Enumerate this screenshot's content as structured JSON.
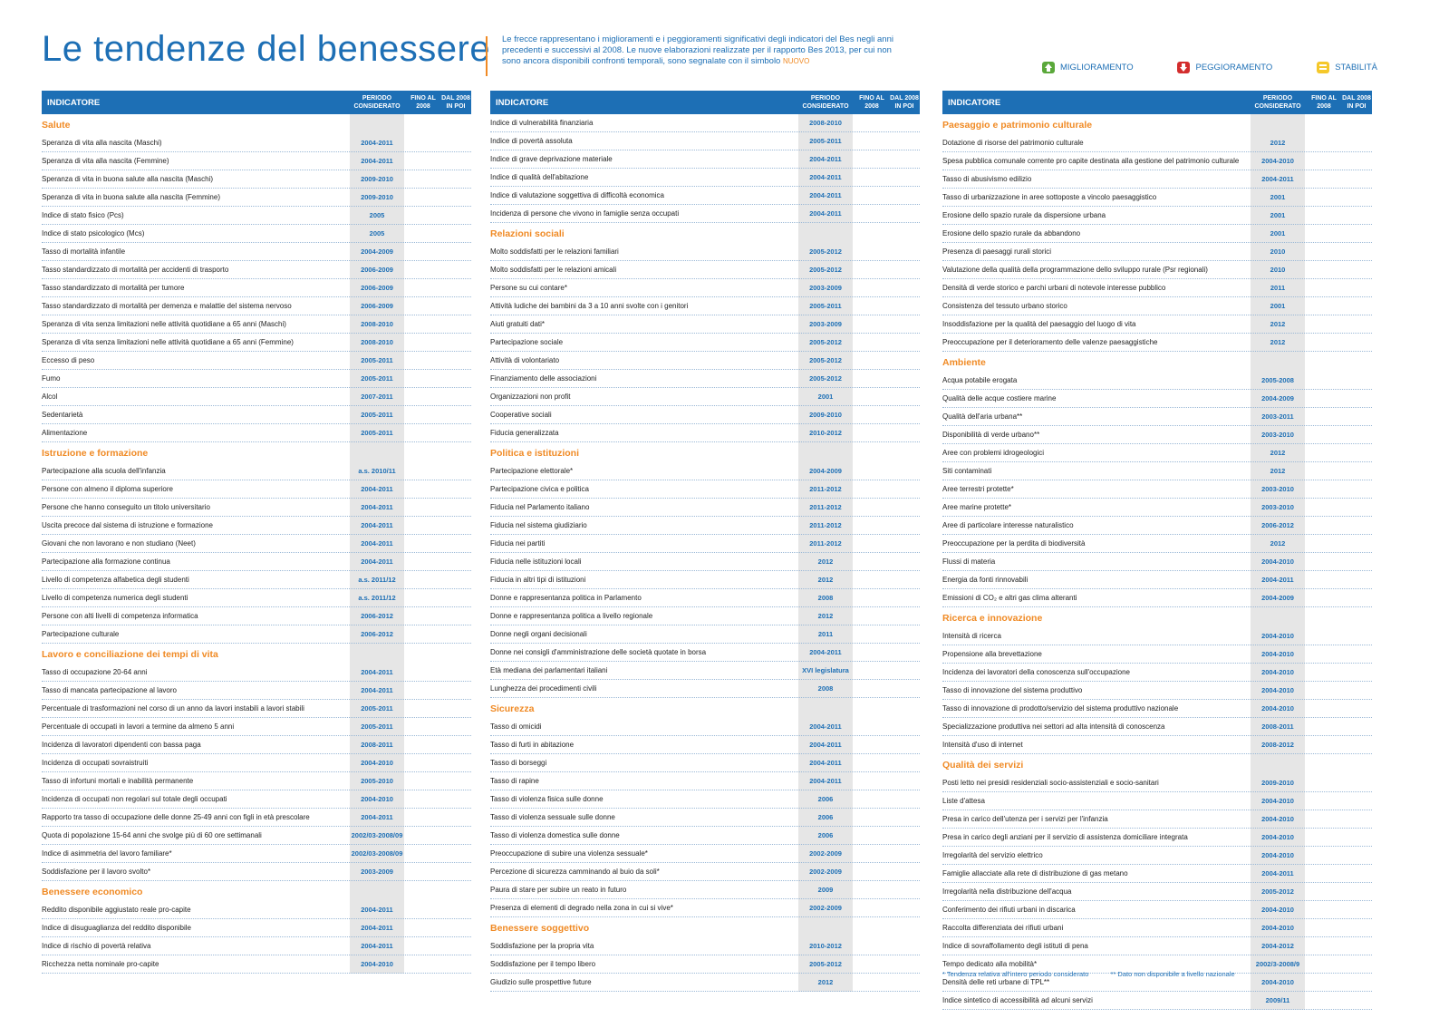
{
  "header": {
    "title": "Le tendenze del benessere",
    "intro_1": "Le frecce rappresentano i miglioramenti e i peggioramenti significativi degli indicatori del Bes negli anni precedenti e successivi al 2008.",
    "intro_2": "Le nuove elaborazioni realizzate per il rapporto Bes 2013, per cui non sono ancora disponibili confronti temporali, sono segnalate con il simbolo",
    "intro_nuovo": "NUOVO"
  },
  "legend": {
    "improve": "MIGLIORAMENTO",
    "worse": "PEGGIORAMENTO",
    "stable": "STABILITÀ"
  },
  "table_header": {
    "indicator": "INDICATORE",
    "period": "PERIODO CONSIDERATO",
    "fino": "FINO AL 2008",
    "dal": "DAL 2008 IN POI"
  },
  "columns": [
    {
      "sections": [
        {
          "title": "Salute",
          "rows": [
            {
              "label": "Speranza di vita alla nascita (Maschi)",
              "period": "2004-2011"
            },
            {
              "label": "Speranza di vita alla nascita (Femmine)",
              "period": "2004-2011"
            },
            {
              "label": "Speranza di vita in buona salute alla nascita (Maschi)",
              "period": "2009-2010"
            },
            {
              "label": "Speranza di vita in buona salute alla nascita (Femmine)",
              "period": "2009-2010"
            },
            {
              "label": "Indice di stato fisico (Pcs)",
              "period": "2005"
            },
            {
              "label": "Indice di stato psicologico (Mcs)",
              "period": "2005"
            },
            {
              "label": "Tasso di mortalità infantile",
              "period": "2004-2009"
            },
            {
              "label": "Tasso standardizzato di mortalità per accidenti di trasporto",
              "period": "2006-2009"
            },
            {
              "label": "Tasso standardizzato di mortalità per tumore",
              "period": "2006-2009"
            },
            {
              "label": "Tasso standardizzato di mortalità per demenza e malattie del sistema nervoso",
              "period": "2006-2009"
            },
            {
              "label": "Speranza di vita senza limitazioni nelle attività quotidiane a 65 anni (Maschi)",
              "period": "2008-2010"
            },
            {
              "label": "Speranza di vita senza limitazioni nelle attività quotidiane a 65 anni (Femmine)",
              "period": "2008-2010"
            },
            {
              "label": "Eccesso di peso",
              "period": "2005-2011"
            },
            {
              "label": "Fumo",
              "period": "2005-2011"
            },
            {
              "label": "Alcol",
              "period": "2007-2011"
            },
            {
              "label": "Sedentarietà",
              "period": "2005-2011"
            },
            {
              "label": "Alimentazione",
              "period": "2005-2011"
            }
          ]
        },
        {
          "title": "Istruzione e formazione",
          "rows": [
            {
              "label": "Partecipazione alla scuola dell'infanzia",
              "period": "a.s. 2010/11"
            },
            {
              "label": "Persone con almeno il diploma superiore",
              "period": "2004-2011"
            },
            {
              "label": "Persone che hanno conseguito un titolo universitario",
              "period": "2004-2011"
            },
            {
              "label": "Uscita precoce dal sistema di istruzione e formazione",
              "period": "2004-2011"
            },
            {
              "label": "Giovani che non lavorano e non studiano (Neet)",
              "period": "2004-2011"
            },
            {
              "label": "Partecipazione alla formazione continua",
              "period": "2004-2011"
            },
            {
              "label": "Livello di competenza alfabetica degli studenti",
              "period": "a.s. 2011/12"
            },
            {
              "label": "Livello di competenza numerica degli studenti",
              "period": "a.s. 2011/12"
            },
            {
              "label": "Persone con alti livelli di competenza informatica",
              "period": "2006-2012"
            },
            {
              "label": "Partecipazione culturale",
              "period": "2006-2012"
            }
          ]
        },
        {
          "title": "Lavoro e conciliazione dei tempi di vita",
          "rows": [
            {
              "label": "Tasso di occupazione 20-64 anni",
              "period": "2004-2011"
            },
            {
              "label": "Tasso di mancata partecipazione al lavoro",
              "period": "2004-2011"
            },
            {
              "label": "Percentuale di trasformazioni nel corso di un anno da lavori instabili a lavori stabili",
              "period": "2005-2011"
            },
            {
              "label": "Percentuale di occupati in lavori a termine da almeno 5 anni",
              "period": "2005-2011"
            },
            {
              "label": "Incidenza di lavoratori dipendenti con bassa paga",
              "period": "2008-2011"
            },
            {
              "label": "Incidenza di occupati sovraistruiti",
              "period": "2004-2010"
            },
            {
              "label": "Tasso di infortuni mortali e inabilità permanente",
              "period": "2005-2010"
            },
            {
              "label": "Incidenza di occupati non regolari sul totale degli occupati",
              "period": "2004-2010"
            },
            {
              "label": "Rapporto tra tasso di occupazione delle donne 25-49 anni con figli in età prescolare",
              "period": "2004-2011"
            },
            {
              "label": "Quota di popolazione 15-64 anni che svolge più di 60 ore settimanali",
              "period": "2002/03-2008/09"
            },
            {
              "label": "Indice di asimmetria del lavoro familiare*",
              "period": "2002/03-2008/09"
            },
            {
              "label": "Soddisfazione per il lavoro svolto*",
              "period": "2003-2009"
            }
          ]
        },
        {
          "title": "Benessere economico",
          "rows": [
            {
              "label": "Reddito disponibile aggiustato reale pro-capite",
              "period": "2004-2011"
            },
            {
              "label": "Indice di disuguaglianza del reddito disponibile",
              "period": "2004-2011"
            },
            {
              "label": "Indice di rischio di povertà relativa",
              "period": "2004-2011"
            },
            {
              "label": "Ricchezza netta nominale pro-capite",
              "period": "2004-2010"
            }
          ]
        }
      ]
    },
    {
      "sections": [
        {
          "title": "",
          "rows": [
            {
              "label": "Indice di vulnerabilità finanziaria",
              "period": "2008-2010"
            },
            {
              "label": "Indice di povertà assoluta",
              "period": "2005-2011"
            },
            {
              "label": "Indice di grave deprivazione materiale",
              "period": "2004-2011"
            },
            {
              "label": "Indice di qualità dell'abitazione",
              "period": "2004-2011"
            },
            {
              "label": "Indice di valutazione soggettiva di difficoltà economica",
              "period": "2004-2011"
            },
            {
              "label": "Incidenza di persone che vivono in famiglie senza occupati",
              "period": "2004-2011"
            }
          ]
        },
        {
          "title": "Relazioni sociali",
          "rows": [
            {
              "label": "Molto soddisfatti per le relazioni familiari",
              "period": "2005-2012"
            },
            {
              "label": "Molto soddisfatti per le relazioni amicali",
              "period": "2005-2012"
            },
            {
              "label": "Persone su cui contare*",
              "period": "2003-2009"
            },
            {
              "label": "Attività ludiche dei bambini da 3 a 10 anni svolte con i genitori",
              "period": "2005-2011"
            },
            {
              "label": "Aiuti gratuiti dati*",
              "period": "2003-2009"
            },
            {
              "label": "Partecipazione sociale",
              "period": "2005-2012"
            },
            {
              "label": "Attività di volontariato",
              "period": "2005-2012"
            },
            {
              "label": "Finanziamento delle associazioni",
              "period": "2005-2012"
            },
            {
              "label": "Organizzazioni non profit",
              "period": "2001"
            },
            {
              "label": "Cooperative sociali",
              "period": "2009-2010"
            },
            {
              "label": "Fiducia generalizzata",
              "period": "2010-2012"
            }
          ]
        },
        {
          "title": "Politica e istituzioni",
          "rows": [
            {
              "label": "Partecipazione elettorale*",
              "period": "2004-2009"
            },
            {
              "label": "Partecipazione civica e politica",
              "period": "2011-2012"
            },
            {
              "label": "Fiducia nel Parlamento italiano",
              "period": "2011-2012"
            },
            {
              "label": "Fiducia nel sistema giudiziario",
              "period": "2011-2012"
            },
            {
              "label": "Fiducia nei partiti",
              "period": "2011-2012"
            },
            {
              "label": "Fiducia nelle istituzioni locali",
              "period": "2012"
            },
            {
              "label": "Fiducia in altri tipi di istituzioni",
              "period": "2012"
            },
            {
              "label": "Donne e rappresentanza politica in Parlamento",
              "period": "2008"
            },
            {
              "label": "Donne e rappresentanza politica a livello regionale",
              "period": "2012"
            },
            {
              "label": "Donne negli organi decisionali",
              "period": "2011"
            },
            {
              "label": "Donne nei consigli d'amministrazione delle società quotate in borsa",
              "period": "2004-2011"
            },
            {
              "label": "Età mediana dei parlamentari italiani",
              "period": "XVI legislatura"
            },
            {
              "label": "Lunghezza dei procedimenti civili",
              "period": "2008"
            }
          ]
        },
        {
          "title": "Sicurezza",
          "rows": [
            {
              "label": "Tasso di omicidi",
              "period": "2004-2011"
            },
            {
              "label": "Tasso di furti in abitazione",
              "period": "2004-2011"
            },
            {
              "label": "Tasso di borseggi",
              "period": "2004-2011"
            },
            {
              "label": "Tasso di rapine",
              "period": "2004-2011"
            },
            {
              "label": "Tasso di violenza fisica sulle donne",
              "period": "2006"
            },
            {
              "label": "Tasso di violenza sessuale sulle donne",
              "period": "2006"
            },
            {
              "label": "Tasso di violenza domestica sulle donne",
              "period": "2006"
            },
            {
              "label": "Preoccupazione di subire una violenza sessuale*",
              "period": "2002-2009"
            },
            {
              "label": "Percezione di sicurezza camminando al buio da soli*",
              "period": "2002-2009"
            },
            {
              "label": "Paura di stare per subire un reato in futuro",
              "period": "2009"
            },
            {
              "label": "Presenza di elementi di degrado nella zona in cui si vive*",
              "period": "2002-2009"
            }
          ]
        },
        {
          "title": "Benessere soggettivo",
          "rows": [
            {
              "label": "Soddisfazione per la propria vita",
              "period": "2010-2012"
            },
            {
              "label": "Soddisfazione per il tempo libero",
              "period": "2005-2012"
            },
            {
              "label": "Giudizio sulle prospettive future",
              "period": "2012"
            }
          ]
        }
      ]
    },
    {
      "sections": [
        {
          "title": "Paesaggio e patrimonio culturale",
          "rows": [
            {
              "label": "Dotazione di risorse del patrimonio culturale",
              "period": "2012"
            },
            {
              "label": "Spesa pubblica comunale corrente pro capite destinata alla gestione del patrimonio culturale",
              "period": "2004-2010"
            },
            {
              "label": "Tasso di abusivismo edilizio",
              "period": "2004-2011"
            },
            {
              "label": "Tasso di urbanizzazione in aree sottoposte a vincolo paesaggistico",
              "period": "2001"
            },
            {
              "label": "Erosione dello spazio rurale da dispersione urbana",
              "period": "2001"
            },
            {
              "label": "Erosione dello spazio rurale da abbandono",
              "period": "2001"
            },
            {
              "label": "Presenza di paesaggi rurali storici",
              "period": "2010"
            },
            {
              "label": "Valutazione della qualità della programmazione dello sviluppo rurale (Psr regionali)",
              "period": "2010"
            },
            {
              "label": "Densità di verde storico e parchi urbani di notevole interesse pubblico",
              "period": "2011"
            },
            {
              "label": "Consistenza del tessuto urbano storico",
              "period": "2001"
            },
            {
              "label": "Insoddisfazione per la qualità del paesaggio del luogo di vita",
              "period": "2012"
            },
            {
              "label": "Preoccupazione per il deterioramento delle valenze paesaggistiche",
              "period": "2012"
            }
          ]
        },
        {
          "title": "Ambiente",
          "rows": [
            {
              "label": "Acqua potabile erogata",
              "period": "2005-2008"
            },
            {
              "label": "Qualità delle acque costiere marine",
              "period": "2004-2009"
            },
            {
              "label": "Qualità dell'aria urbana**",
              "period": "2003-2011"
            },
            {
              "label": "Disponibilità di verde urbano**",
              "period": "2003-2010"
            },
            {
              "label": "Aree con problemi idrogeologici",
              "period": "2012"
            },
            {
              "label": "Siti contaminati",
              "period": "2012"
            },
            {
              "label": "Aree terrestri protette*",
              "period": "2003-2010"
            },
            {
              "label": "Aree marine protette*",
              "period": "2003-2010"
            },
            {
              "label": "Aree di particolare interesse naturalistico",
              "period": "2006-2012"
            },
            {
              "label": "Preoccupazione per la perdita di biodiversità",
              "period": "2012"
            },
            {
              "label": "Flussi di materia",
              "period": "2004-2010"
            },
            {
              "label": "Energia da fonti rinnovabili",
              "period": "2004-2011"
            },
            {
              "label": "Emissioni di CO₂ e altri gas clima alteranti",
              "period": "2004-2009"
            }
          ]
        },
        {
          "title": "Ricerca e innovazione",
          "rows": [
            {
              "label": "Intensità di ricerca",
              "period": "2004-2010"
            },
            {
              "label": "Propensione alla brevettazione",
              "period": "2004-2010"
            },
            {
              "label": "Incidenza dei lavoratori della conoscenza sull'occupazione",
              "period": "2004-2010"
            },
            {
              "label": "Tasso di innovazione del sistema produttivo",
              "period": "2004-2010"
            },
            {
              "label": "Tasso di innovazione di prodotto/servizio del sistema produttivo nazionale",
              "period": "2004-2010"
            },
            {
              "label": "Specializzazione produttiva nei settori ad alta intensità di conoscenza",
              "period": "2008-2011"
            },
            {
              "label": "Intensità d'uso di internet",
              "period": "2008-2012"
            }
          ]
        },
        {
          "title": "Qualità dei servizi",
          "rows": [
            {
              "label": "Posti letto nei presidi residenziali socio-assistenziali e socio-sanitari",
              "period": "2009-2010"
            },
            {
              "label": "Liste d'attesa",
              "period": "2004-2010"
            },
            {
              "label": "Presa in carico dell'utenza per i servizi per l'infanzia",
              "period": "2004-2010"
            },
            {
              "label": "Presa in carico degli anziani per il servizio di assistenza domiciliare integrata",
              "period": "2004-2010"
            },
            {
              "label": "Irregolarità del servizio elettrico",
              "period": "2004-2010"
            },
            {
              "label": "Famiglie allacciate alla rete di distribuzione di gas metano",
              "period": "2004-2011"
            },
            {
              "label": "Irregolarità nella distribuzione dell'acqua",
              "period": "2005-2012"
            },
            {
              "label": "Conferimento dei rifiuti urbani in discarica",
              "period": "2004-2010"
            },
            {
              "label": "Raccolta differenziata dei rifiuti urbani",
              "period": "2004-2010"
            },
            {
              "label": "Indice di sovraffollamento degli istituti di pena",
              "period": "2004-2012"
            },
            {
              "label": "Tempo dedicato alla mobilità*",
              "period": "2002/3-2008/9"
            },
            {
              "label": "Densità delle reti urbane di TPL**",
              "period": "2004-2010"
            },
            {
              "label": "Indice sintetico di accessibilità ad alcuni servizi",
              "period": "2009/11"
            }
          ]
        }
      ]
    }
  ],
  "footnotes": {
    "f1": "* Tendenza relativa all'intero periodo considerato",
    "f2": "** Dato non disponibile a livello nazionale"
  }
}
